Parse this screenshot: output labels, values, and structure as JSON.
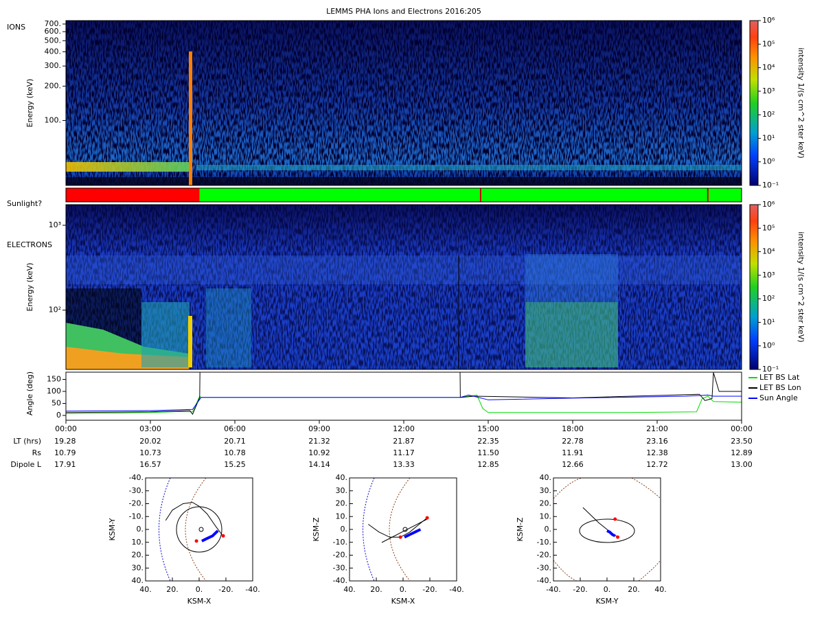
{
  "title": "LEMMS PHA Ions and Electrons  2016:205",
  "chart_data": [
    {
      "type": "spectrogram",
      "panel_label": "IONS",
      "ylabel": "Energy (keV)",
      "yscale": "log",
      "ylim": [
        27,
        750
      ],
      "yticks": [
        {
          "value": 100,
          "label": "100."
        },
        {
          "value": 200,
          "label": "200."
        },
        {
          "value": 300,
          "label": "300."
        },
        {
          "value": 400,
          "label": "400."
        },
        {
          "value": 500,
          "label": "500."
        },
        {
          "value": 600,
          "label": "600."
        },
        {
          "value": 700,
          "label": "700."
        }
      ],
      "colorbar_label": "intensity 1/(s cm^2 ster keV)",
      "clim": [
        0.1,
        1000000
      ],
      "cticks": [
        {
          "value": 0.1,
          "label": "10⁻¹"
        },
        {
          "value": 1,
          "label": "10⁰"
        },
        {
          "value": 10,
          "label": "10¹"
        },
        {
          "value": 100,
          "label": "10²"
        },
        {
          "value": 1000,
          "label": "10³"
        },
        {
          "value": 10000,
          "label": "10⁴"
        },
        {
          "value": 100000,
          "label": "10⁵"
        },
        {
          "value": 1000000,
          "label": "10⁶"
        }
      ]
    },
    {
      "type": "timeline",
      "panel_label": "Sunlight?",
      "xlim": [
        0,
        24
      ],
      "intervals": [
        {
          "start": 0,
          "end": 4.75,
          "color": "#ff0000"
        },
        {
          "start": 4.75,
          "end": 24,
          "color": "#00ff00"
        }
      ],
      "events": [
        14.73,
        22.8
      ],
      "event_color": "#cc0000"
    },
    {
      "type": "spectrogram",
      "panel_label": "ELECTRONS",
      "ylabel": "Energy (keV)",
      "yscale": "log",
      "ylim": [
        20,
        1750
      ],
      "yticks": [
        {
          "value": 100,
          "label": "10²"
        },
        {
          "value": 1000,
          "label": "10³"
        }
      ],
      "colorbar_label": "intensity 1/(s cm^2 ster keV)",
      "clim": [
        0.1,
        1000000
      ],
      "cticks": [
        {
          "value": 0.1,
          "label": "10⁻¹"
        },
        {
          "value": 1,
          "label": "10⁰"
        },
        {
          "value": 10,
          "label": "10¹"
        },
        {
          "value": 100,
          "label": "10²"
        },
        {
          "value": 1000,
          "label": "10³"
        },
        {
          "value": 10000,
          "label": "10⁴"
        },
        {
          "value": 100000,
          "label": "10⁵"
        },
        {
          "value": 1000000,
          "label": "10⁶"
        }
      ]
    },
    {
      "type": "line",
      "ylabel": "Angle (deg)",
      "xlim": [
        0,
        24
      ],
      "ylim": [
        -20,
        180
      ],
      "yticks": [
        0,
        50,
        100,
        150
      ],
      "xticks": [
        {
          "value": 0,
          "label": "00:00"
        },
        {
          "value": 3,
          "label": "03:00"
        },
        {
          "value": 6,
          "label": "06:00"
        },
        {
          "value": 9,
          "label": "09:00"
        },
        {
          "value": 12,
          "label": "12:00"
        },
        {
          "value": 15,
          "label": "15:00"
        },
        {
          "value": 18,
          "label": "18:00"
        },
        {
          "value": 21,
          "label": "21:00"
        },
        {
          "value": 24,
          "label": "00:00"
        }
      ],
      "series": [
        {
          "name": "LET BS Lat",
          "color": "#00dd00",
          "x": [
            0,
            1,
            2,
            3,
            4,
            4.5,
            4.75,
            4.8,
            14,
            14.3,
            14.6,
            14.8,
            15,
            20,
            22.4,
            22.6,
            22.8,
            23,
            24
          ],
          "values": [
            8,
            9,
            10,
            12,
            16,
            15,
            80,
            75,
            75,
            80,
            85,
            30,
            12,
            12,
            15,
            70,
            80,
            58,
            55
          ]
        },
        {
          "name": "LET BS Lon",
          "color": "#000000",
          "x": [
            0,
            3,
            4.4,
            4.5,
            4.75,
            4.76,
            14.0,
            14.01,
            14.5,
            18,
            22.5,
            22.7,
            22.95,
            23.0,
            23.2,
            24
          ],
          "values": [
            12,
            15,
            20,
            5,
            75,
            180,
            180,
            75,
            80,
            73,
            88,
            62,
            70,
            178,
            100,
            100
          ]
        },
        {
          "name": "Sun Angle",
          "color": "#0000ff",
          "x": [
            0,
            3,
            4.5,
            4.8,
            14,
            14.3,
            15,
            18,
            22,
            22.8,
            23,
            24
          ],
          "values": [
            18,
            20,
            25,
            75,
            75,
            85,
            65,
            72,
            80,
            85,
            80,
            80
          ]
        }
      ],
      "ephemeris": [
        {
          "name": "LT (hrs)",
          "values": [
            "19.28",
            "20.02",
            "20.71",
            "21.32",
            "21.87",
            "22.35",
            "22.78",
            "23.16",
            "23.50"
          ]
        },
        {
          "name": "Rs",
          "values": [
            "10.79",
            "10.73",
            "10.78",
            "10.92",
            "11.17",
            "11.50",
            "11.91",
            "12.38",
            "12.89"
          ]
        },
        {
          "name": "Dipole L",
          "values": [
            "17.91",
            "16.57",
            "15.25",
            "14.14",
            "13.33",
            "12.85",
            "12.66",
            "12.72",
            "13.00"
          ]
        }
      ]
    },
    {
      "type": "orbit",
      "xlabel": "KSM-X",
      "ylabel": "KSM-Y",
      "xlim": [
        40,
        -40
      ],
      "ylim": [
        40,
        -40
      ],
      "xticks": [
        {
          "value": 40,
          "label": "40."
        },
        {
          "value": 20,
          "label": "20."
        },
        {
          "value": 0,
          "label": "0."
        },
        {
          "value": -20,
          "label": "-20."
        },
        {
          "value": -40,
          "label": "-40."
        }
      ],
      "yticks": [
        {
          "value": -40,
          "label": "-40."
        },
        {
          "value": -30,
          "label": "-30."
        },
        {
          "value": -20,
          "label": "-20."
        },
        {
          "value": -10,
          "label": "-10."
        },
        {
          "value": 0,
          "label": "0."
        },
        {
          "value": 10,
          "label": "10."
        },
        {
          "value": 20,
          "label": "20."
        },
        {
          "value": 30,
          "label": "30."
        },
        {
          "value": 40,
          "label": "40."
        }
      ],
      "trajectory": {
        "color": "#000000",
        "x": [
          25,
          20,
          12,
          5,
          0,
          -6,
          -12,
          -17,
          -18
        ],
        "y": [
          -7,
          -15,
          -20,
          -21,
          -18,
          -12,
          -3,
          4,
          6
        ]
      },
      "segment": {
        "color": "#0000ff",
        "x": [
          -2,
          -6,
          -10,
          -14
        ],
        "y": [
          9,
          7,
          5,
          1
        ]
      },
      "markers": {
        "color": "#ff0000",
        "x": [
          -18,
          2
        ],
        "y": [
          5,
          9
        ]
      }
    },
    {
      "type": "orbit",
      "xlabel": "KSM-X",
      "ylabel": "KSM-Z",
      "xlim": [
        40,
        -40
      ],
      "ylim": [
        -40,
        40
      ],
      "xticks": [
        {
          "value": 40,
          "label": "40."
        },
        {
          "value": 20,
          "label": "20."
        },
        {
          "value": 0,
          "label": "0."
        },
        {
          "value": -20,
          "label": "-20."
        },
        {
          "value": -40,
          "label": "-40."
        }
      ],
      "yticks": [
        {
          "value": -40,
          "label": "-40."
        },
        {
          "value": -30,
          "label": "-30."
        },
        {
          "value": -20,
          "label": "-20."
        },
        {
          "value": -10,
          "label": "-10."
        },
        {
          "value": 0,
          "label": "0."
        },
        {
          "value": 10,
          "label": "10."
        },
        {
          "value": 20,
          "label": "20."
        },
        {
          "value": 30,
          "label": "30."
        },
        {
          "value": 40,
          "label": "40."
        }
      ],
      "trajectory": {
        "color": "#000000",
        "x": [
          26,
          18,
          10,
          2,
          -5,
          -12,
          -18
        ],
        "y": [
          4,
          -2,
          -6,
          -6,
          -2,
          4,
          9
        ]
      },
      "segment": {
        "color": "#0000ff",
        "x": [
          -1,
          -5,
          -9,
          -13
        ],
        "y": [
          -6,
          -4,
          -2,
          0
        ]
      },
      "markers": {
        "color": "#ff0000",
        "x": [
          -18,
          2
        ],
        "y": [
          9,
          -6
        ]
      }
    },
    {
      "type": "orbit",
      "xlabel": "KSM-Y",
      "ylabel": "KSM-Z",
      "xlim": [
        -40,
        40
      ],
      "ylim": [
        -40,
        40
      ],
      "xticks": [
        {
          "value": -40,
          "label": "-40."
        },
        {
          "value": -20,
          "label": "-20."
        },
        {
          "value": 0,
          "label": "0."
        },
        {
          "value": 20,
          "label": "20."
        },
        {
          "value": 40,
          "label": "40."
        }
      ],
      "yticks": [
        {
          "value": -40,
          "label": "-40."
        },
        {
          "value": -30,
          "label": "-30."
        },
        {
          "value": -20,
          "label": "-20."
        },
        {
          "value": -10,
          "label": "-10."
        },
        {
          "value": 0,
          "label": "0."
        },
        {
          "value": 10,
          "label": "10."
        },
        {
          "value": 20,
          "label": "20."
        },
        {
          "value": 30,
          "label": "30."
        },
        {
          "value": 40,
          "label": "40."
        }
      ],
      "trajectory": {
        "color": "#000000",
        "x": [
          -18,
          -12,
          -6,
          0,
          4,
          8
        ],
        "y": [
          17,
          11,
          5,
          0,
          -3,
          -6
        ]
      },
      "segment": {
        "color": "#0000ff",
        "x": [
          0,
          2,
          4,
          6
        ],
        "y": [
          -1,
          -2,
          -4,
          -5
        ]
      },
      "markers": {
        "color": "#ff0000",
        "x": [
          6,
          8
        ],
        "y": [
          8,
          -6
        ]
      }
    }
  ]
}
